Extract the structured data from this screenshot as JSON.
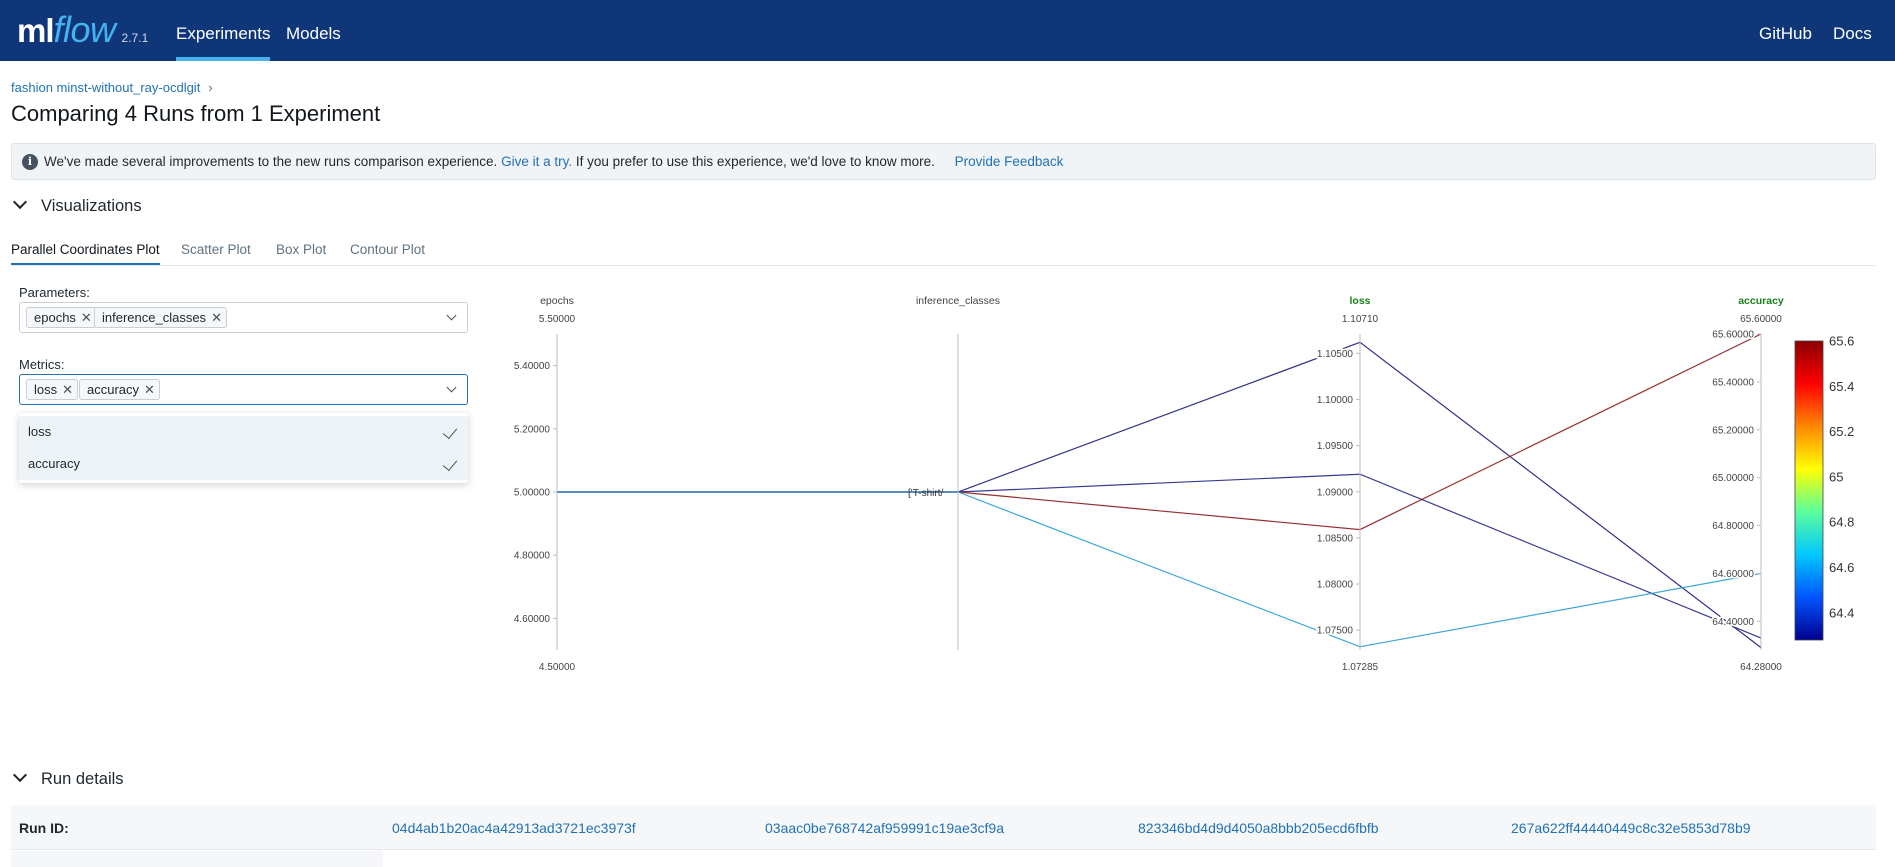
{
  "header": {
    "logo_ml": "ml",
    "logo_flow": "flow",
    "version": "2.7.1",
    "nav": [
      "Experiments",
      "Models"
    ],
    "active_nav": "Experiments",
    "right_links": [
      "GitHub",
      "Docs"
    ]
  },
  "breadcrumb": {
    "experiment": "fashion minst-without_ray-ocdlgit",
    "separator": "›"
  },
  "page_title": "Comparing 4 Runs from 1 Experiment",
  "banner": {
    "text_before": "We've made several improvements to the new runs comparison experience.",
    "try_link": "Give it a try.",
    "text_after": "If you prefer to use this experience, we'd love to know more.",
    "feedback_link": "Provide Feedback"
  },
  "visualizations_label": "Visualizations",
  "tabs": [
    "Parallel Coordinates Plot",
    "Scatter Plot",
    "Box Plot",
    "Contour Plot"
  ],
  "active_tab": "Parallel Coordinates Plot",
  "parameters": {
    "label": "Parameters:",
    "selected": [
      "epochs",
      "inference_classes"
    ]
  },
  "metrics": {
    "label": "Metrics:",
    "selected": [
      "loss",
      "accuracy"
    ],
    "options": [
      "loss",
      "accuracy"
    ]
  },
  "colors": {
    "header_bg": "#0e3679",
    "accent": "#43b2ee",
    "link": "#2272b4",
    "metric_label": "#1a7f1a"
  },
  "chart_data": {
    "type": "parallel_coordinates",
    "dimensions": [
      {
        "name": "epochs",
        "kind": "parameter",
        "range": [
          4.5,
          5.5
        ],
        "top_label": "5.50000",
        "bottom_label": "4.50000",
        "ticks": [
          {
            "v": 5.4,
            "t": "5.40000"
          },
          {
            "v": 5.2,
            "t": "5.20000"
          },
          {
            "v": 5.0,
            "t": "5.00000"
          },
          {
            "v": 4.8,
            "t": "4.80000"
          },
          {
            "v": 4.6,
            "t": "4.60000"
          }
        ]
      },
      {
        "name": "inference_classes",
        "kind": "parameter",
        "categorical": true,
        "categories": [
          "['T-shirt/"
        ],
        "category_label": "['T-shirt/"
      },
      {
        "name": "loss",
        "kind": "metric",
        "range": [
          1.07285,
          1.1071
        ],
        "top_label": "1.10710",
        "bottom_label": "1.07285",
        "ticks": [
          {
            "v": 1.105,
            "t": "1.10500"
          },
          {
            "v": 1.1,
            "t": "1.10000"
          },
          {
            "v": 1.095,
            "t": "1.09500"
          },
          {
            "v": 1.09,
            "t": "1.09000"
          },
          {
            "v": 1.085,
            "t": "1.08500"
          },
          {
            "v": 1.08,
            "t": "1.08000"
          },
          {
            "v": 1.075,
            "t": "1.07500"
          }
        ]
      },
      {
        "name": "accuracy",
        "kind": "metric",
        "range": [
          64.28,
          65.6
        ],
        "top_label": "65.60000",
        "bottom_label": "64.28000",
        "ticks": [
          {
            "v": 65.6,
            "t": "65.60000"
          },
          {
            "v": 65.4,
            "t": "65.40000"
          },
          {
            "v": 65.2,
            "t": "65.20000"
          },
          {
            "v": 65.0,
            "t": "65.00000"
          },
          {
            "v": 64.8,
            "t": "64.80000"
          },
          {
            "v": 64.6,
            "t": "64.60000"
          },
          {
            "v": 64.4,
            "t": "64.40000"
          }
        ]
      }
    ],
    "runs": [
      {
        "epochs": 5,
        "inference_classes": "['T-shirt/",
        "loss": 1.1062,
        "accuracy": 64.29,
        "color": "#1a1a7a"
      },
      {
        "epochs": 5,
        "inference_classes": "['T-shirt/",
        "loss": 1.0919,
        "accuracy": 64.33,
        "color": "#232386"
      },
      {
        "epochs": 5,
        "inference_classes": "['T-shirt/",
        "loss": 1.0859,
        "accuracy": 65.6,
        "color": "#8b1a1a"
      },
      {
        "epochs": 5,
        "inference_classes": "['T-shirt/",
        "loss": 1.0732,
        "accuracy": 64.6,
        "color": "#2a9ed6"
      }
    ],
    "colorscale": {
      "range": [
        64.28,
        65.6
      ],
      "ticks": [
        {
          "v": 65.6,
          "t": "65.6"
        },
        {
          "v": 65.4,
          "t": "65.4"
        },
        {
          "v": 65.2,
          "t": "65.2"
        },
        {
          "v": 65.0,
          "t": "65"
        },
        {
          "v": 64.8,
          "t": "64.8"
        },
        {
          "v": 64.6,
          "t": "64.6"
        },
        {
          "v": 64.4,
          "t": "64.4"
        }
      ],
      "stops": [
        "#00008f",
        "#0055ff",
        "#00c8ff",
        "#5cff9c",
        "#ffff00",
        "#ff8800",
        "#ff0000",
        "#8b0000"
      ]
    }
  },
  "run_details": {
    "label": "Run details",
    "run_id_label": "Run ID:",
    "run_ids": [
      "04d4ab1b20ac4a42913ad3721ec3973f",
      "03aac0be768742af959991c19ae3cf9a",
      "823346bd4d9d4050a8bbb205ecd6fbfb",
      "267a622ff44440449c8c32e5853d78b9"
    ]
  }
}
